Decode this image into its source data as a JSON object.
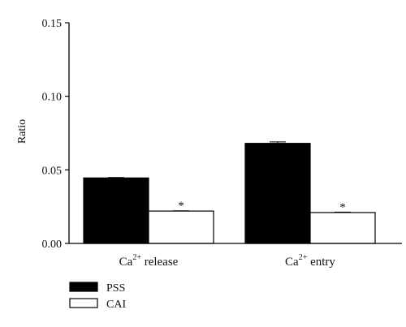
{
  "chart_data": {
    "type": "bar",
    "ylabel": "Ratio",
    "xlabel": "",
    "ylim": [
      0,
      0.15
    ],
    "yticks": [
      "0.00",
      "0.05",
      "0.10",
      "0.15"
    ],
    "categories": [
      {
        "base": "Ca",
        "sup": "2+",
        "rest": " release"
      },
      {
        "base": "Ca",
        "sup": "2+",
        "rest": " entry"
      }
    ],
    "series": [
      {
        "name": "PSS",
        "color": "#000000",
        "values": [
          0.0445,
          0.068
        ],
        "errors": [
          0.0003,
          0.001
        ],
        "markers": [
          "",
          ""
        ]
      },
      {
        "name": "CAI",
        "color": "#ffffff",
        "values": [
          0.022,
          0.021
        ],
        "errors": [
          0.0002,
          0.0003
        ],
        "markers": [
          "*",
          "*"
        ]
      }
    ],
    "legend": "bottom-left",
    "grid": false
  }
}
